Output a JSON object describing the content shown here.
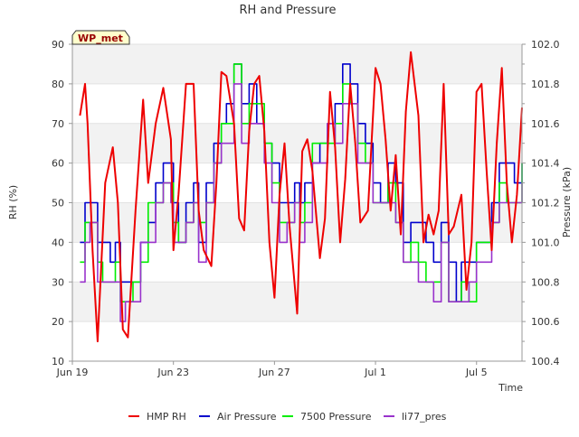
{
  "chart_data": {
    "type": "line",
    "title": "RH and Pressure",
    "badge": "WP_met",
    "xlabel": "Time",
    "ylabel_left": "RH (%)",
    "ylabel_right": "Pressure (kPa)",
    "x_range_days": [
      19.0,
      36.8
    ],
    "ylim_left": [
      10,
      90
    ],
    "ylim_right": [
      100.4,
      102.0
    ],
    "x_ticks": [
      {
        "label": "Jun 19",
        "day": 19
      },
      {
        "label": "Jun 23",
        "day": 23
      },
      {
        "label": "Jun 27",
        "day": 27
      },
      {
        "label": "Jul 1",
        "day": 31
      },
      {
        "label": "Jul 5",
        "day": 35
      }
    ],
    "y_ticks_left": [
      10,
      20,
      30,
      40,
      50,
      60,
      70,
      80,
      90
    ],
    "y_ticks_right": [
      100.4,
      100.6,
      100.8,
      101.0,
      101.2,
      101.4,
      101.6,
      101.8,
      102.0
    ],
    "grid": "horizontal, alternating gray bands",
    "legend_position": "bottom",
    "series": [
      {
        "name": "HMP RH",
        "axis": "left",
        "color": "#ee0000",
        "x": [
          19.3,
          19.5,
          19.6,
          19.8,
          20.0,
          20.3,
          20.6,
          20.8,
          21.0,
          21.2,
          21.5,
          21.8,
          22.0,
          22.3,
          22.6,
          22.9,
          23.0,
          23.2,
          23.5,
          23.8,
          24.0,
          24.2,
          24.5,
          24.7,
          24.9,
          25.1,
          25.4,
          25.6,
          25.8,
          26.0,
          26.2,
          26.4,
          26.6,
          26.8,
          27.0,
          27.2,
          27.4,
          27.6,
          27.9,
          28.1,
          28.3,
          28.5,
          28.8,
          29.0,
          29.2,
          29.4,
          29.6,
          29.8,
          30.0,
          30.2,
          30.4,
          30.7,
          31.0,
          31.2,
          31.4,
          31.6,
          31.8,
          32.0,
          32.2,
          32.4,
          32.7,
          32.9,
          33.1,
          33.3,
          33.5,
          33.7,
          33.9,
          34.1,
          34.4,
          34.6,
          34.8,
          35.0,
          35.2,
          35.4,
          35.6,
          35.8,
          36.0,
          36.2,
          36.4,
          36.6,
          36.8
        ],
        "y": [
          72,
          80,
          70,
          38,
          15,
          55,
          64,
          50,
          18,
          16,
          48,
          76,
          55,
          70,
          79,
          66,
          38,
          52,
          80,
          80,
          48,
          38,
          34,
          55,
          83,
          82,
          70,
          46,
          43,
          68,
          80,
          82,
          68,
          40,
          26,
          52,
          65,
          44,
          22,
          63,
          66,
          58,
          36,
          46,
          78,
          64,
          40,
          56,
          80,
          65,
          45,
          48,
          84,
          80,
          66,
          48,
          62,
          42,
          73,
          88,
          72,
          40,
          47,
          42,
          48,
          80,
          42,
          44,
          52,
          28,
          40,
          78,
          80,
          58,
          38,
          65,
          84,
          55,
          40,
          52,
          74
        ]
      },
      {
        "name": "Air Pressure",
        "axis": "right",
        "color": "#0000cc",
        "x": [
          19.3,
          19.5,
          19.7,
          20.0,
          20.2,
          20.5,
          20.7,
          20.9,
          21.1,
          21.4,
          21.7,
          22.0,
          22.3,
          22.6,
          22.9,
          23.0,
          23.2,
          23.5,
          23.8,
          24.0,
          24.3,
          24.6,
          24.9,
          25.1,
          25.4,
          25.7,
          26.0,
          26.3,
          26.6,
          26.9,
          27.2,
          27.5,
          27.8,
          28.0,
          28.2,
          28.5,
          28.8,
          29.1,
          29.4,
          29.7,
          30.0,
          30.3,
          30.6,
          30.9,
          31.2,
          31.5,
          31.8,
          32.1,
          32.4,
          32.7,
          33.0,
          33.3,
          33.6,
          33.9,
          34.2,
          34.4,
          34.7,
          35.0,
          35.3,
          35.6,
          35.9,
          36.2,
          36.5,
          36.8
        ],
        "y": [
          101.0,
          101.2,
          101.2,
          101.0,
          101.0,
          100.9,
          101.0,
          100.8,
          100.8,
          100.8,
          101.0,
          101.1,
          101.3,
          101.4,
          101.4,
          101.2,
          101.0,
          101.2,
          101.3,
          101.0,
          101.3,
          101.5,
          101.6,
          101.7,
          101.9,
          101.7,
          101.8,
          101.6,
          101.5,
          101.4,
          101.2,
          101.2,
          101.3,
          101.2,
          101.3,
          101.4,
          101.5,
          101.6,
          101.7,
          101.9,
          101.8,
          101.6,
          101.5,
          101.3,
          101.2,
          101.4,
          101.3,
          101.0,
          101.1,
          101.1,
          101.0,
          100.9,
          101.1,
          100.9,
          100.7,
          100.9,
          100.9,
          101.0,
          101.0,
          101.2,
          101.4,
          101.4,
          101.3,
          101.4
        ]
      },
      {
        "name": "7500 Pressure",
        "axis": "right",
        "color": "#00ee00",
        "x": [
          19.3,
          19.5,
          19.7,
          20.0,
          20.2,
          20.5,
          20.7,
          20.9,
          21.1,
          21.4,
          21.7,
          22.0,
          22.3,
          22.6,
          22.9,
          23.0,
          23.2,
          23.5,
          23.8,
          24.0,
          24.3,
          24.6,
          24.9,
          25.1,
          25.4,
          25.7,
          26.0,
          26.3,
          26.6,
          26.9,
          27.2,
          27.5,
          27.8,
          28.0,
          28.2,
          28.5,
          28.8,
          29.1,
          29.4,
          29.7,
          30.0,
          30.3,
          30.6,
          30.9,
          31.2,
          31.5,
          31.8,
          32.1,
          32.4,
          32.7,
          33.0,
          33.3,
          33.6,
          33.9,
          34.2,
          34.4,
          34.7,
          35.0,
          35.3,
          35.6,
          35.9,
          36.2,
          36.5,
          36.8
        ],
        "y": [
          100.9,
          101.1,
          101.1,
          100.9,
          100.8,
          100.8,
          100.9,
          100.7,
          100.7,
          100.8,
          100.9,
          101.2,
          101.2,
          101.3,
          101.3,
          101.1,
          101.0,
          101.1,
          101.2,
          101.1,
          101.2,
          101.4,
          101.6,
          101.6,
          101.9,
          101.6,
          101.7,
          101.7,
          101.5,
          101.3,
          101.1,
          101.1,
          101.2,
          101.1,
          101.2,
          101.5,
          101.5,
          101.5,
          101.6,
          101.8,
          101.7,
          101.5,
          101.4,
          101.2,
          101.2,
          101.3,
          101.1,
          100.9,
          101.0,
          100.9,
          100.8,
          100.8,
          101.0,
          100.7,
          100.7,
          100.8,
          100.7,
          101.0,
          101.0,
          101.1,
          101.3,
          101.2,
          101.2,
          101.4
        ]
      },
      {
        "name": "li77_pres",
        "axis": "right",
        "color": "#9933cc",
        "x": [
          19.3,
          19.5,
          19.7,
          20.0,
          20.2,
          20.5,
          20.7,
          20.9,
          21.1,
          21.4,
          21.7,
          22.0,
          22.3,
          22.6,
          22.9,
          23.0,
          23.2,
          23.5,
          23.8,
          24.0,
          24.3,
          24.6,
          24.9,
          25.1,
          25.4,
          25.7,
          26.0,
          26.3,
          26.6,
          26.9,
          27.2,
          27.5,
          27.8,
          28.0,
          28.2,
          28.5,
          28.8,
          29.1,
          29.4,
          29.7,
          30.0,
          30.3,
          30.6,
          30.9,
          31.2,
          31.5,
          31.8,
          32.1,
          32.4,
          32.7,
          33.0,
          33.3,
          33.6,
          33.9,
          34.2,
          34.4,
          34.7,
          35.0,
          35.3,
          35.6,
          35.9,
          36.2,
          36.5,
          36.8
        ],
        "y": [
          100.8,
          101.0,
          101.1,
          100.8,
          100.8,
          100.8,
          100.8,
          100.6,
          100.7,
          100.7,
          101.0,
          101.0,
          101.2,
          101.3,
          101.2,
          101.0,
          101.0,
          101.1,
          101.2,
          100.9,
          101.2,
          101.4,
          101.5,
          101.5,
          101.8,
          101.5,
          101.6,
          101.6,
          101.4,
          101.2,
          101.0,
          101.1,
          101.2,
          101.0,
          101.1,
          101.4,
          101.4,
          101.6,
          101.5,
          101.7,
          101.7,
          101.4,
          101.4,
          101.2,
          101.2,
          101.2,
          101.1,
          100.9,
          100.9,
          100.8,
          100.8,
          100.7,
          101.0,
          100.7,
          100.7,
          100.7,
          100.8,
          100.9,
          100.9,
          101.1,
          101.2,
          101.2,
          101.2,
          101.3
        ]
      }
    ]
  }
}
